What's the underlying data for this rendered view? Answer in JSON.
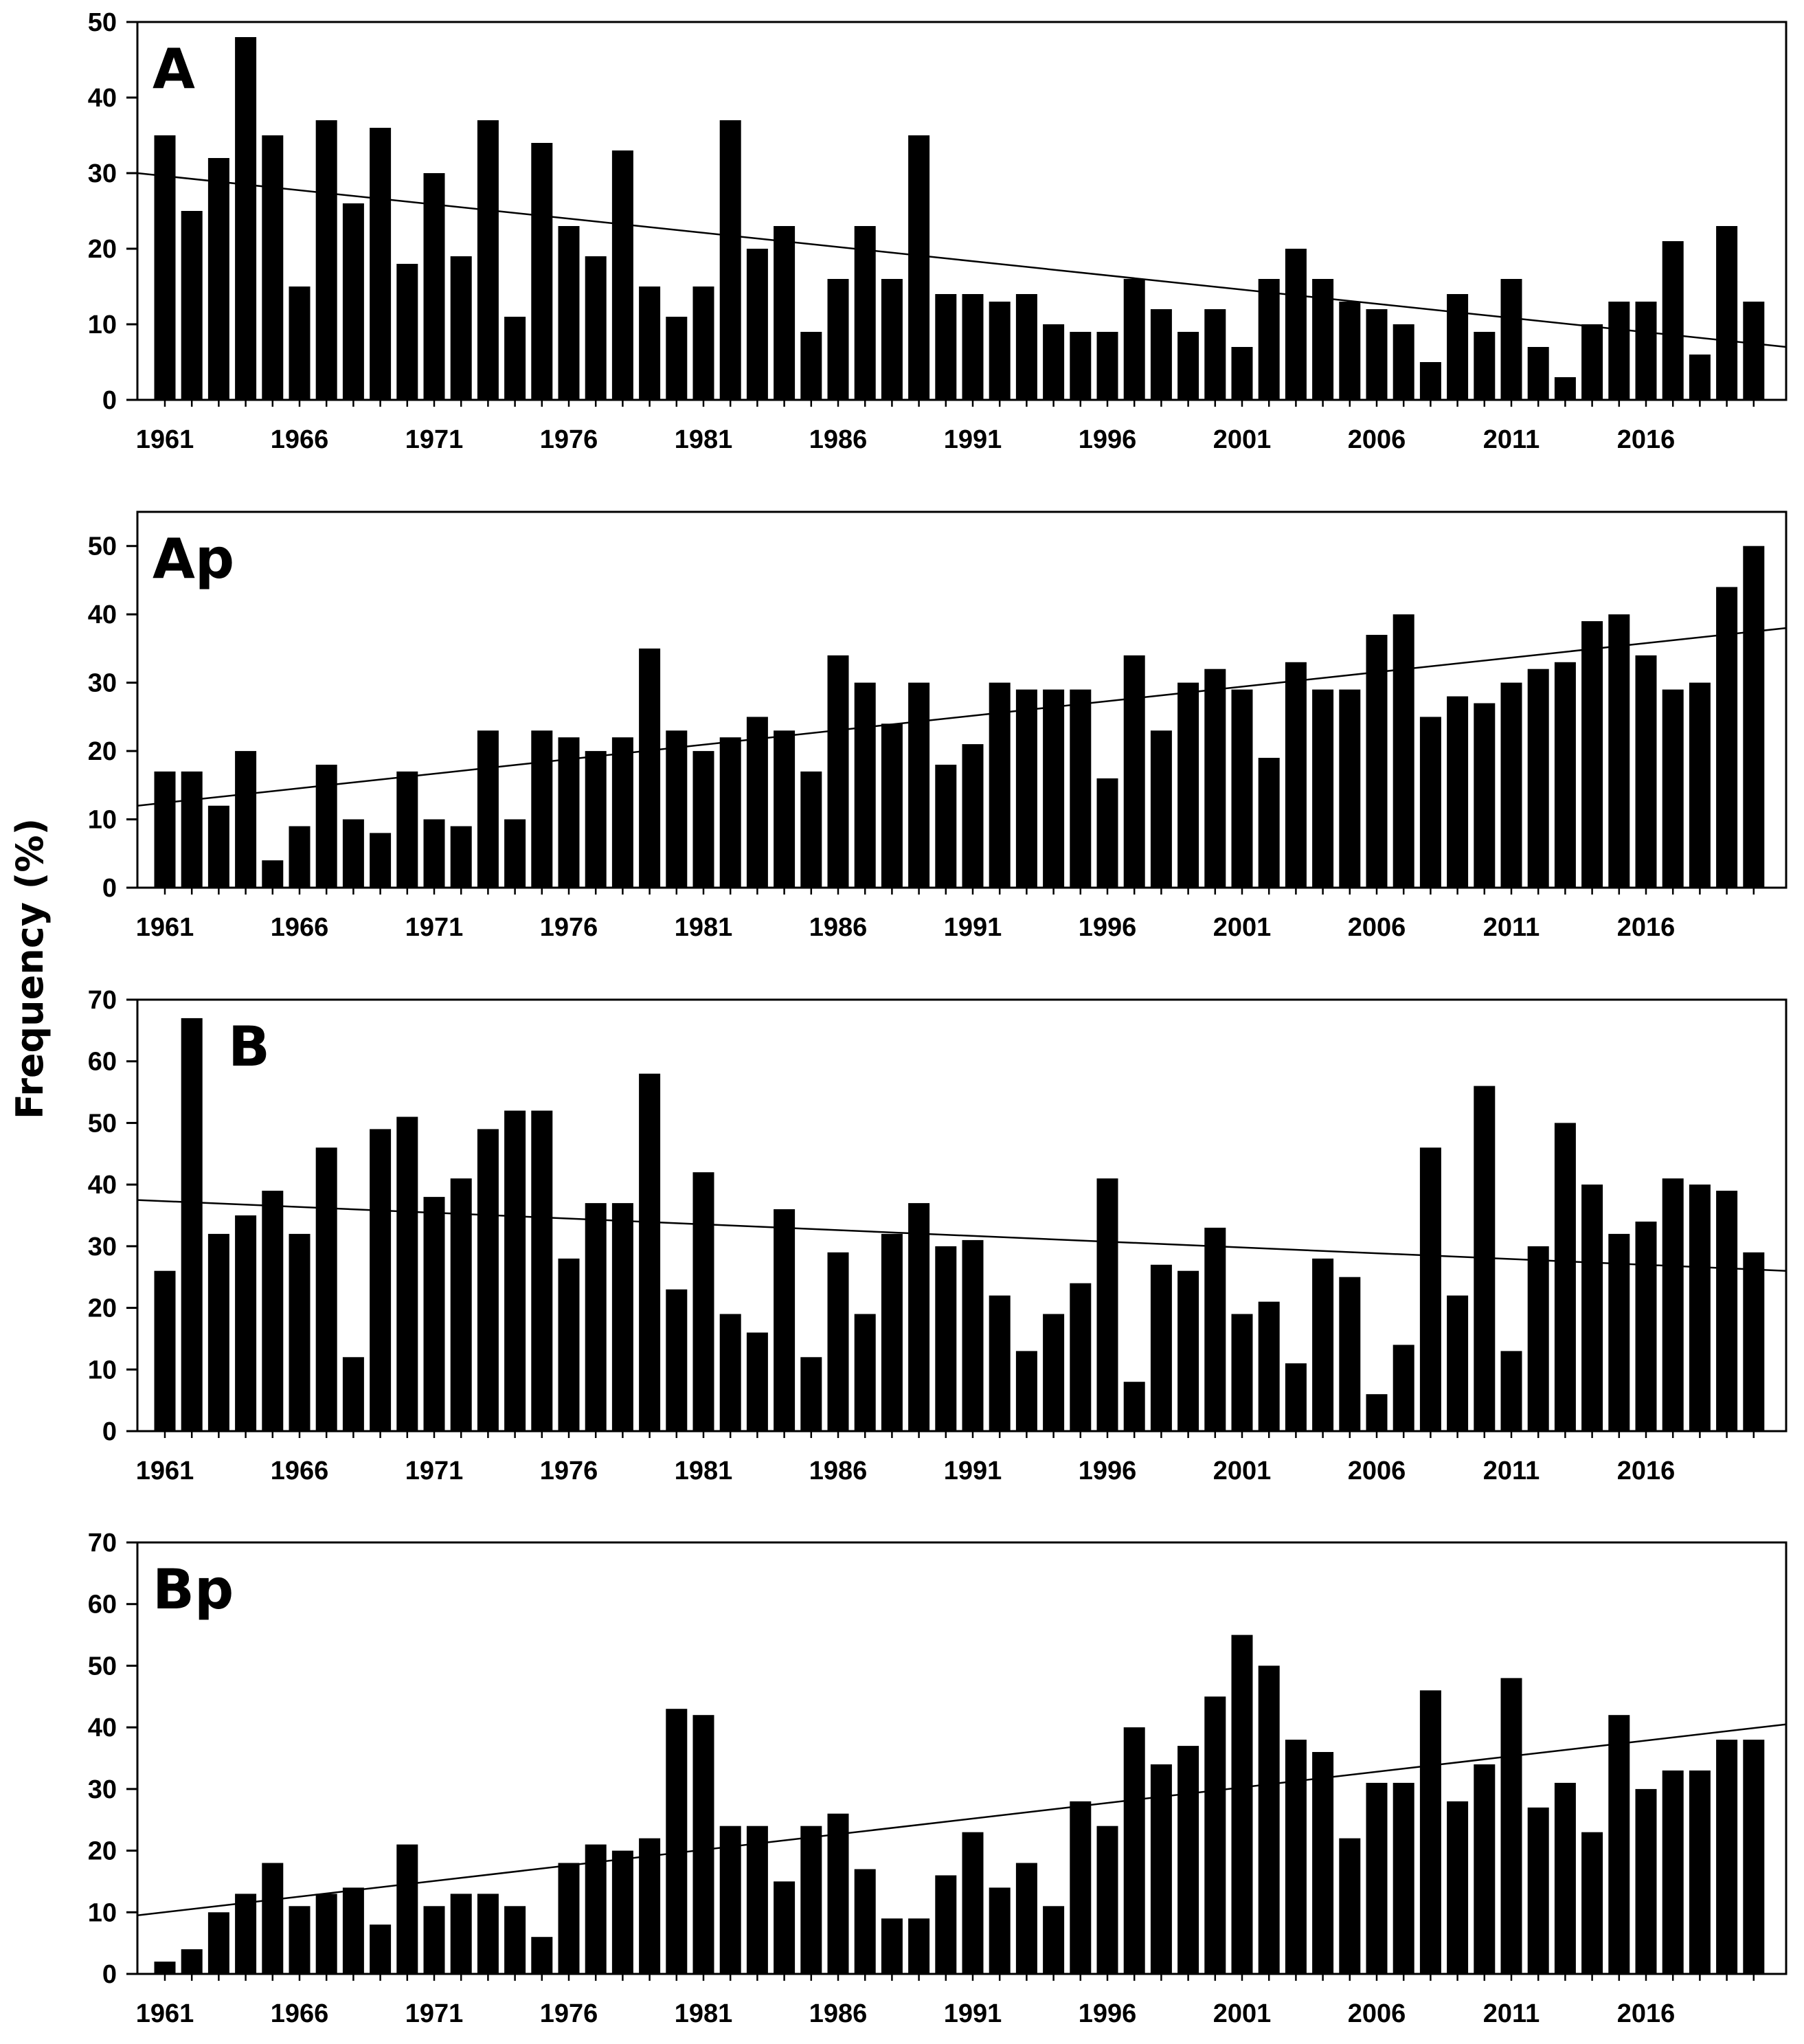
{
  "chart_data": [
    {
      "type": "bar",
      "panel_label": "A",
      "years": [
        1961,
        1962,
        1963,
        1964,
        1965,
        1966,
        1967,
        1968,
        1969,
        1970,
        1971,
        1972,
        1973,
        1974,
        1975,
        1976,
        1977,
        1978,
        1979,
        1980,
        1981,
        1982,
        1983,
        1984,
        1985,
        1986,
        1987,
        1988,
        1989,
        1990,
        1991,
        1992,
        1993,
        1994,
        1995,
        1996,
        1997,
        1998,
        1999,
        2000,
        2001,
        2002,
        2003,
        2004,
        2005,
        2006,
        2007,
        2008,
        2009,
        2010,
        2011,
        2012,
        2013,
        2014,
        2015,
        2016,
        2017,
        2018,
        2019,
        2020
      ],
      "values": [
        35,
        25,
        32,
        48,
        35,
        15,
        37,
        26,
        36,
        18,
        30,
        19,
        37,
        11,
        34,
        23,
        19,
        33,
        15,
        11,
        15,
        37,
        20,
        23,
        9,
        16,
        23,
        16,
        35,
        14,
        14,
        13,
        14,
        10,
        9,
        9,
        16,
        12,
        9,
        12,
        7,
        16,
        20,
        16,
        13,
        12,
        10,
        5,
        14,
        9,
        16,
        7,
        3,
        10,
        13,
        13,
        21,
        6,
        23,
        13
      ],
      "trend": {
        "start": 30,
        "end": 7
      },
      "ylim": [
        0,
        50
      ],
      "yticks": [
        0,
        10,
        20,
        30,
        40,
        50
      ],
      "xtick_labels": [
        "1961",
        "1966",
        "1971",
        "1976",
        "1981",
        "1986",
        "1991",
        "1996",
        "2001",
        "2006",
        "2011",
        "2016"
      ]
    },
    {
      "type": "bar",
      "panel_label": "Ap",
      "years": [
        1961,
        1962,
        1963,
        1964,
        1965,
        1966,
        1967,
        1968,
        1969,
        1970,
        1971,
        1972,
        1973,
        1974,
        1975,
        1976,
        1977,
        1978,
        1979,
        1980,
        1981,
        1982,
        1983,
        1984,
        1985,
        1986,
        1987,
        1988,
        1989,
        1990,
        1991,
        1992,
        1993,
        1994,
        1995,
        1996,
        1997,
        1998,
        1999,
        2000,
        2001,
        2002,
        2003,
        2004,
        2005,
        2006,
        2007,
        2008,
        2009,
        2010,
        2011,
        2012,
        2013,
        2014,
        2015,
        2016,
        2017,
        2018,
        2019,
        2020
      ],
      "values": [
        17,
        17,
        12,
        20,
        4,
        9,
        18,
        10,
        8,
        17,
        10,
        9,
        23,
        10,
        23,
        22,
        20,
        22,
        35,
        23,
        20,
        22,
        25,
        23,
        17,
        34,
        30,
        24,
        30,
        18,
        21,
        30,
        29,
        29,
        29,
        16,
        34,
        23,
        30,
        32,
        29,
        19,
        33,
        29,
        29,
        37,
        40,
        25,
        28,
        27,
        30,
        32,
        33,
        39,
        40,
        34,
        29,
        30,
        44,
        50
      ],
      "trend": {
        "start": 12,
        "end": 38
      },
      "ylim": [
        0,
        55
      ],
      "yticks": [
        0,
        10,
        20,
        30,
        40,
        50
      ],
      "xtick_labels": [
        "1961",
        "1966",
        "1971",
        "1976",
        "1981",
        "1986",
        "1991",
        "1996",
        "2001",
        "2006",
        "2011",
        "2016"
      ]
    },
    {
      "type": "bar",
      "panel_label": "B",
      "years": [
        1961,
        1962,
        1963,
        1964,
        1965,
        1966,
        1967,
        1968,
        1969,
        1970,
        1971,
        1972,
        1973,
        1974,
        1975,
        1976,
        1977,
        1978,
        1979,
        1980,
        1981,
        1982,
        1983,
        1984,
        1985,
        1986,
        1987,
        1988,
        1989,
        1990,
        1991,
        1992,
        1993,
        1994,
        1995,
        1996,
        1997,
        1998,
        1999,
        2000,
        2001,
        2002,
        2003,
        2004,
        2005,
        2006,
        2007,
        2008,
        2009,
        2010,
        2011,
        2012,
        2013,
        2014,
        2015,
        2016,
        2017,
        2018,
        2019,
        2020
      ],
      "values": [
        26,
        67,
        32,
        35,
        39,
        32,
        46,
        12,
        49,
        51,
        38,
        41,
        49,
        52,
        52,
        28,
        37,
        37,
        58,
        23,
        42,
        19,
        16,
        36,
        12,
        29,
        19,
        32,
        37,
        30,
        31,
        22,
        13,
        19,
        24,
        41,
        8,
        27,
        26,
        33,
        19,
        21,
        11,
        28,
        25,
        6,
        14,
        46,
        22,
        56,
        13,
        30,
        50,
        40,
        32,
        34,
        41,
        40,
        39,
        29
      ],
      "trend": {
        "start": 37.5,
        "end": 26
      },
      "ylim": [
        0,
        70
      ],
      "yticks": [
        0,
        10,
        20,
        30,
        40,
        50,
        60,
        70
      ],
      "xtick_labels": [
        "1961",
        "1966",
        "1971",
        "1976",
        "1981",
        "1986",
        "1991",
        "1996",
        "2001",
        "2006",
        "2011",
        "2016"
      ]
    },
    {
      "type": "bar",
      "panel_label": "Bp",
      "years": [
        1961,
        1962,
        1963,
        1964,
        1965,
        1966,
        1967,
        1968,
        1969,
        1970,
        1971,
        1972,
        1973,
        1974,
        1975,
        1976,
        1977,
        1978,
        1979,
        1980,
        1981,
        1982,
        1983,
        1984,
        1985,
        1986,
        1987,
        1988,
        1989,
        1990,
        1991,
        1992,
        1993,
        1994,
        1995,
        1996,
        1997,
        1998,
        1999,
        2000,
        2001,
        2002,
        2003,
        2004,
        2005,
        2006,
        2007,
        2008,
        2009,
        2010,
        2011,
        2012,
        2013,
        2014,
        2015,
        2016,
        2017,
        2018,
        2019,
        2020
      ],
      "values": [
        2,
        4,
        10,
        13,
        18,
        11,
        13,
        14,
        8,
        21,
        11,
        13,
        13,
        11,
        6,
        18,
        21,
        20,
        22,
        43,
        42,
        24,
        24,
        15,
        24,
        26,
        17,
        9,
        9,
        16,
        23,
        14,
        18,
        11,
        28,
        24,
        40,
        34,
        37,
        45,
        55,
        50,
        38,
        36,
        22,
        31,
        31,
        46,
        28,
        34,
        48,
        27,
        31,
        23,
        42,
        30,
        33,
        33,
        38,
        38
      ],
      "trend": {
        "start": 9.5,
        "end": 40.5
      },
      "ylim": [
        0,
        70
      ],
      "yticks": [
        0,
        10,
        20,
        30,
        40,
        50,
        60,
        70
      ],
      "xtick_labels": [
        "1961",
        "1966",
        "1971",
        "1976",
        "1981",
        "1986",
        "1991",
        "1996",
        "2001",
        "2006",
        "2011",
        "2016"
      ]
    }
  ],
  "ylabel": "Frequency (%)"
}
